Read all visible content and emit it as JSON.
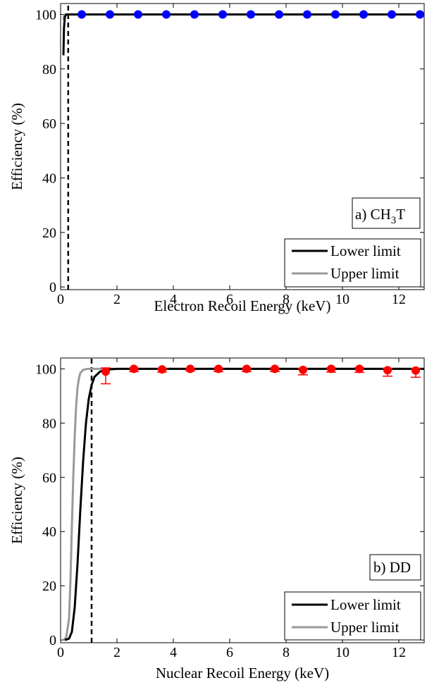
{
  "colors": {
    "lower": "#000000",
    "upper": "#999999",
    "er_points": "#0000ff",
    "nr_points": "#ff0000"
  },
  "chart_data": [
    {
      "type": "line",
      "panel_label": "a) CH",
      "panel_label_sub": "3",
      "panel_label_tail": "T",
      "xlabel": "Electron Recoil Energy (keV)",
      "ylabel": "Efficiency (%)",
      "xlim": [
        0,
        12.9
      ],
      "ylim": [
        -1,
        104
      ],
      "xticks": [
        0,
        2,
        4,
        6,
        8,
        10,
        12
      ],
      "yticks": [
        0,
        20,
        40,
        60,
        80,
        100
      ],
      "threshold_x": 0.27,
      "legend": {
        "placement": "bottom-right",
        "entries": [
          "Lower limit",
          "Upper limit"
        ]
      },
      "series": [
        {
          "name": "Lower limit",
          "x": [
            0.1,
            0.12,
            0.15,
            0.2,
            0.25,
            0.3,
            13.0
          ],
          "y": [
            85,
            95,
            99,
            100,
            100,
            100,
            100
          ]
        },
        {
          "name": "Upper limit",
          "x": [
            0.1,
            0.12,
            0.15,
            0.2,
            0.25,
            0.3,
            13.0
          ],
          "y": [
            98,
            99.5,
            100,
            100,
            100,
            100,
            100
          ]
        }
      ],
      "points": {
        "x": [
          0.75,
          1.75,
          2.75,
          3.75,
          4.75,
          5.75,
          6.75,
          7.75,
          8.75,
          9.75,
          10.75,
          11.75,
          12.75
        ],
        "y": [
          100,
          100,
          100,
          100,
          100,
          100,
          100,
          100,
          100,
          100,
          100,
          100,
          100
        ],
        "err": [
          0,
          0,
          0,
          0,
          0,
          0,
          0,
          0,
          0,
          0,
          0,
          0,
          0
        ]
      }
    },
    {
      "type": "line",
      "panel_label": "b) DD",
      "panel_label_sub": "",
      "panel_label_tail": "",
      "xlabel": "Nuclear Recoil Energy (keV)",
      "ylabel": "Efficiency (%)",
      "xlim": [
        0,
        12.9
      ],
      "ylim": [
        -1,
        104
      ],
      "xticks": [
        0,
        2,
        4,
        6,
        8,
        10,
        12
      ],
      "yticks": [
        0,
        20,
        40,
        60,
        80,
        100
      ],
      "threshold_x": 1.1,
      "legend": {
        "placement": "bottom-right",
        "entries": [
          "Lower limit",
          "Upper limit"
        ]
      },
      "series": [
        {
          "name": "Lower limit",
          "x": [
            0.15,
            0.3,
            0.4,
            0.5,
            0.6,
            0.7,
            0.8,
            0.9,
            1.0,
            1.1,
            1.2,
            1.4,
            1.6,
            2.0,
            13.0
          ],
          "y": [
            0,
            0.5,
            3,
            12,
            28,
            48,
            66,
            80,
            89,
            94,
            97,
            99,
            99.7,
            100,
            100
          ]
        },
        {
          "name": "Upper limit",
          "x": [
            0.1,
            0.2,
            0.3,
            0.35,
            0.4,
            0.45,
            0.5,
            0.55,
            0.6,
            0.65,
            0.7,
            0.8,
            0.9,
            1.0,
            13.0
          ],
          "y": [
            0,
            1,
            8,
            22,
            42,
            60,
            75,
            86,
            93,
            96.5,
            98.5,
            99.6,
            99.9,
            100,
            100
          ]
        }
      ],
      "points": {
        "x": [
          1.6,
          2.6,
          3.6,
          4.6,
          5.6,
          6.6,
          7.6,
          8.6,
          9.6,
          10.6,
          11.6,
          12.6
        ],
        "y": [
          99,
          100,
          99.8,
          100,
          100,
          100,
          100,
          99.6,
          100,
          100,
          99.5,
          99.4
        ],
        "err": [
          4.5,
          1,
          1,
          0.8,
          1,
          1,
          1,
          1.8,
          1.2,
          1.3,
          2.2,
          2.5
        ]
      }
    }
  ]
}
